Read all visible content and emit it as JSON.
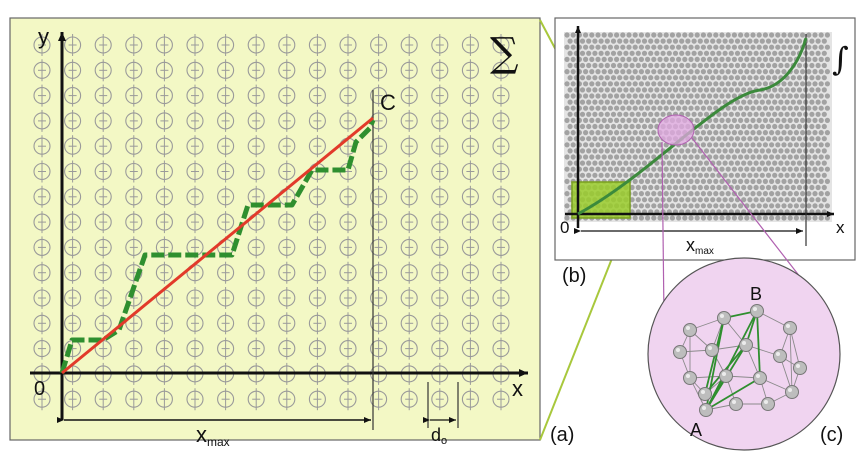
{
  "panel_a": {
    "y_label": "y",
    "x_label": "x",
    "origin_label": "0",
    "point_c_label": "C",
    "sum_symbol": "∑",
    "xmax_main": "x",
    "xmax_sub": "max",
    "d0_main": "d",
    "d0_sub": "o",
    "caption": "(a)"
  },
  "panel_b": {
    "integral_symbol": "∫",
    "origin_label": "0",
    "x_label": "x",
    "xmax_main": "x",
    "xmax_sub": "max",
    "caption": "(b)"
  },
  "panel_c": {
    "label_a": "A",
    "label_b": "B",
    "caption": "(c)"
  },
  "colors": {
    "panel_a_bg": "#f3f8c5",
    "green_path": "#2f8f2f",
    "red_line": "#e23a2a",
    "connector": "#a8c83c",
    "magnify_outline": "#b060b0",
    "magnify_fill": "#f0d4f0",
    "atom_gray": "#9a9a9a"
  }
}
